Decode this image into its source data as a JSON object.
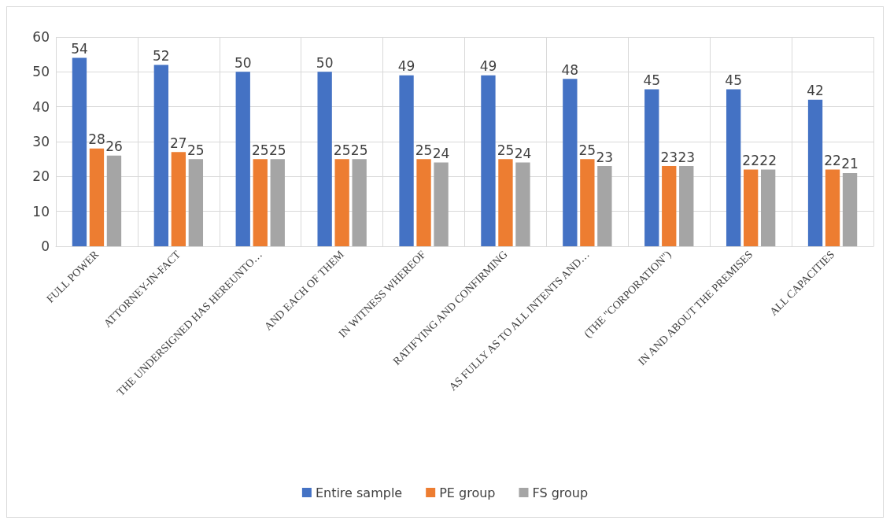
{
  "chart_data": {
    "type": "bar",
    "categories": [
      "FULL POWER",
      "ATTORNEY-IN-FACT",
      "THE UNDERSIGNED HAS HEREUNTO…",
      "AND EACH OF THEM",
      "IN WITNESS WHEREOF",
      "RATIFYING AND CONFIRMING",
      "AS FULLY AS TO ALL INTENTS AND…",
      "(THE \"CORPORATION\")",
      "IN AND ABOUT THE PREMISES",
      "ALL CAPACITIES"
    ],
    "series": [
      {
        "name": "Entire sample",
        "color": "#4472c4",
        "values": [
          54,
          52,
          50,
          50,
          49,
          49,
          48,
          45,
          45,
          42
        ]
      },
      {
        "name": "PE group",
        "color": "#ed7d31",
        "values": [
          28,
          27,
          25,
          25,
          25,
          25,
          25,
          23,
          22,
          22
        ]
      },
      {
        "name": "FS group",
        "color": "#a5a5a5",
        "values": [
          26,
          25,
          25,
          25,
          24,
          24,
          23,
          23,
          22,
          21
        ]
      }
    ],
    "ylim": [
      0,
      60
    ],
    "yticks": [
      0,
      10,
      20,
      30,
      40,
      50,
      60
    ],
    "grid": true,
    "legend": "bottom",
    "data_labels": true
  }
}
